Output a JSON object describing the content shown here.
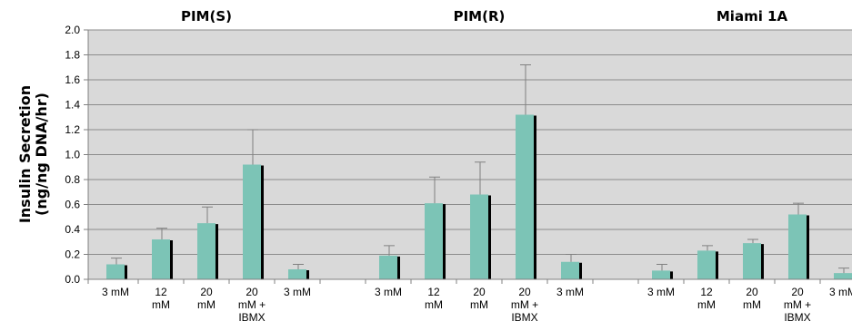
{
  "chart_data": {
    "type": "bar",
    "ylabel_lines": [
      "Insulin Secretion",
      "(ng/ng DNA/hr)"
    ],
    "ylim": [
      0,
      2.0
    ],
    "yticks": [
      "0.0",
      "0.2",
      "0.4",
      "0.6",
      "0.8",
      "1.0",
      "1.2",
      "1.4",
      "1.6",
      "1.8",
      "2.0"
    ],
    "grid": true,
    "colors": {
      "bar": "#7cc4b6",
      "bar_shadow": "#000000",
      "plot_bg": "#d9d9d9",
      "grid": "#8c8c8c",
      "error_bar": "#808080"
    },
    "groups": [
      {
        "title": "PIM(S)",
        "categories": [
          "3 mM",
          "12 mM",
          "20 mM",
          "20 mM + IBMX",
          "3 mM"
        ],
        "values": [
          0.12,
          0.32,
          0.45,
          0.92,
          0.08
        ],
        "errors": [
          0.05,
          0.09,
          0.13,
          0.28,
          0.04
        ]
      },
      {
        "title": "PIM(R)",
        "categories": [
          "3 mM",
          "12 mM",
          "20 mM",
          "20 mM + IBMX",
          "3 mM"
        ],
        "values": [
          0.19,
          0.61,
          0.68,
          1.32,
          0.14
        ],
        "errors": [
          0.08,
          0.21,
          0.26,
          0.4,
          0.06
        ]
      },
      {
        "title": "Miami 1A",
        "categories": [
          "3 mM",
          "12 mM",
          "20 mM",
          "20 mM + IBMX",
          "3 mM"
        ],
        "values": [
          0.07,
          0.23,
          0.29,
          0.52,
          0.05
        ],
        "errors": [
          0.05,
          0.04,
          0.03,
          0.09,
          0.04
        ]
      }
    ]
  }
}
